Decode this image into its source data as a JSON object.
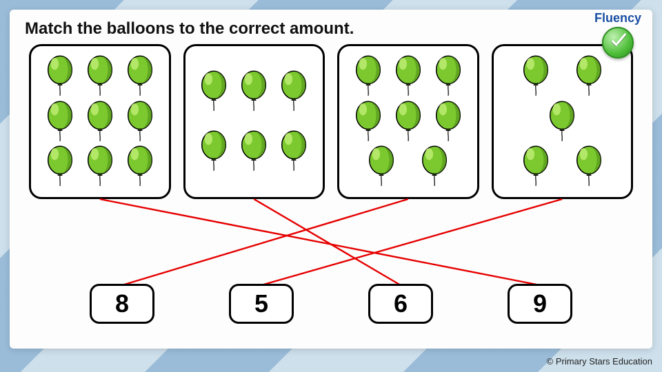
{
  "badge": {
    "label": "Fluency"
  },
  "instruction": "Match the balloons to the correct amount.",
  "balloon_style": {
    "body_stroke": "#000000",
    "body_fill": "#7bc92e",
    "highlight_fill": "#b9ea6e",
    "shadow_fill": "#4d8a18",
    "string_color": "#2a2a2a"
  },
  "cards": [
    {
      "count": 9,
      "layout": [
        3,
        3,
        3
      ]
    },
    {
      "count": 6,
      "layout": [
        3,
        3
      ]
    },
    {
      "count": 8,
      "layout": [
        3,
        3,
        2
      ]
    },
    {
      "count": 5,
      "layout": [
        2,
        1,
        2
      ]
    }
  ],
  "numbers": [
    8,
    5,
    6,
    9
  ],
  "matches": [
    {
      "card_index": 0,
      "number_index": 3
    },
    {
      "card_index": 1,
      "number_index": 2
    },
    {
      "card_index": 2,
      "number_index": 0
    },
    {
      "card_index": 3,
      "number_index": 1
    }
  ],
  "line_style": {
    "color": "#e60000",
    "width": 2.4
  },
  "copyright": "© Primary Stars Education"
}
